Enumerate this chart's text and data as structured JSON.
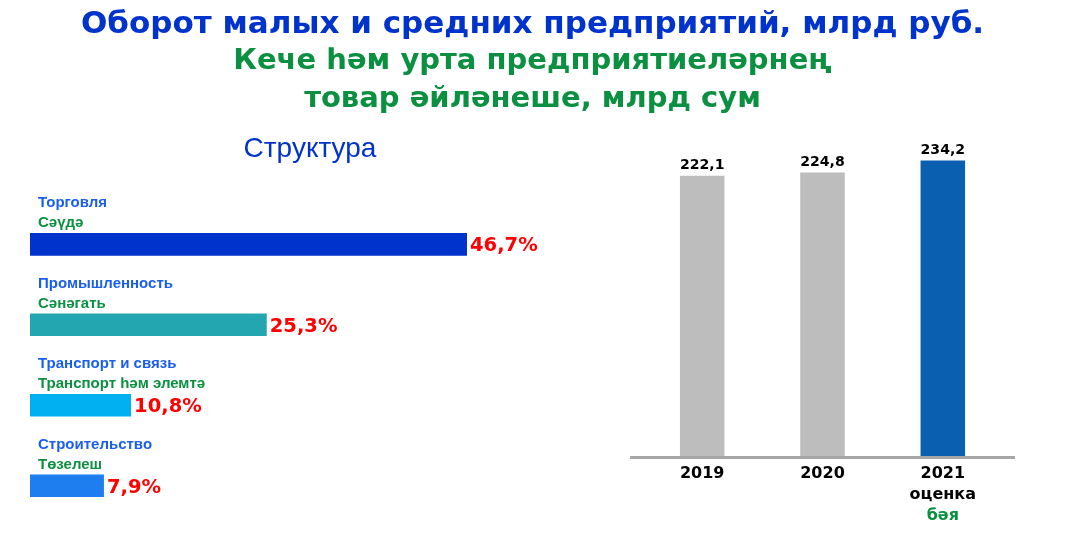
{
  "chart_data": [
    {
      "type": "bar",
      "title": "Структура",
      "orientation": "horizontal",
      "categories": [
        "Торговля\nСәүдә",
        "Промышленность\nСәнәгать",
        "Транспорт и связь\nТранспорт һәм элемтә",
        "Строительство\nТөзелеш"
      ],
      "values": [
        46.7,
        25.3,
        10.8,
        7.9
      ],
      "value_labels": [
        "46,7%",
        "25,3%",
        "10,8%",
        "7,9%"
      ],
      "colors": [
        "#0033cc",
        "#23a6b0",
        "#00b0f0",
        "#1e7ef0"
      ],
      "tick_labels": false,
      "grid": false,
      "legend": false
    },
    {
      "type": "bar",
      "title": "Оборот малых и средних предприятий, млрд руб.",
      "subtitle": "Кече һәм урта предприятиеләрнең\nтовар әйләнеше, млрд сум",
      "categories": [
        "2019",
        "2020",
        "2021\nоценка\nбәя"
      ],
      "values": [
        222.1,
        224.8,
        234.2
      ],
      "value_labels": [
        "222,1",
        "224,8",
        "234,2"
      ],
      "colors": [
        "#bdbdbd",
        "#bdbdbd",
        "#0a5fb0"
      ],
      "tick_labels": "x",
      "grid": false,
      "legend": false
    }
  ]
}
